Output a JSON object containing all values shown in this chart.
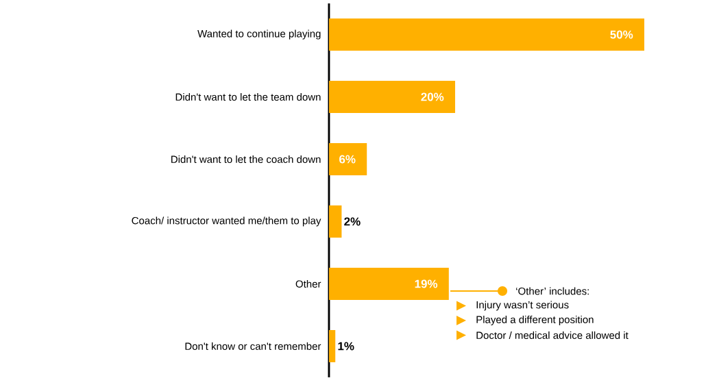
{
  "chart_data": {
    "type": "bar",
    "orientation": "horizontal",
    "categories": [
      "Wanted to continue playing",
      "Didn't want to let the team down",
      "Didn't want to let the coach down",
      "Coach/ instructor wanted me/them to play",
      "Other",
      "Don't know or can't remember"
    ],
    "values": [
      50,
      20,
      6,
      2,
      19,
      1
    ],
    "value_labels": [
      "50%",
      "20%",
      "6%",
      "2%",
      "19%",
      "1%"
    ],
    "color": "#ffb000",
    "annotations": [
      "‘Other’ includes:",
      "Injury wasn’t serious",
      "Played a different position",
      "Doctor / medical advice allowed it"
    ]
  }
}
